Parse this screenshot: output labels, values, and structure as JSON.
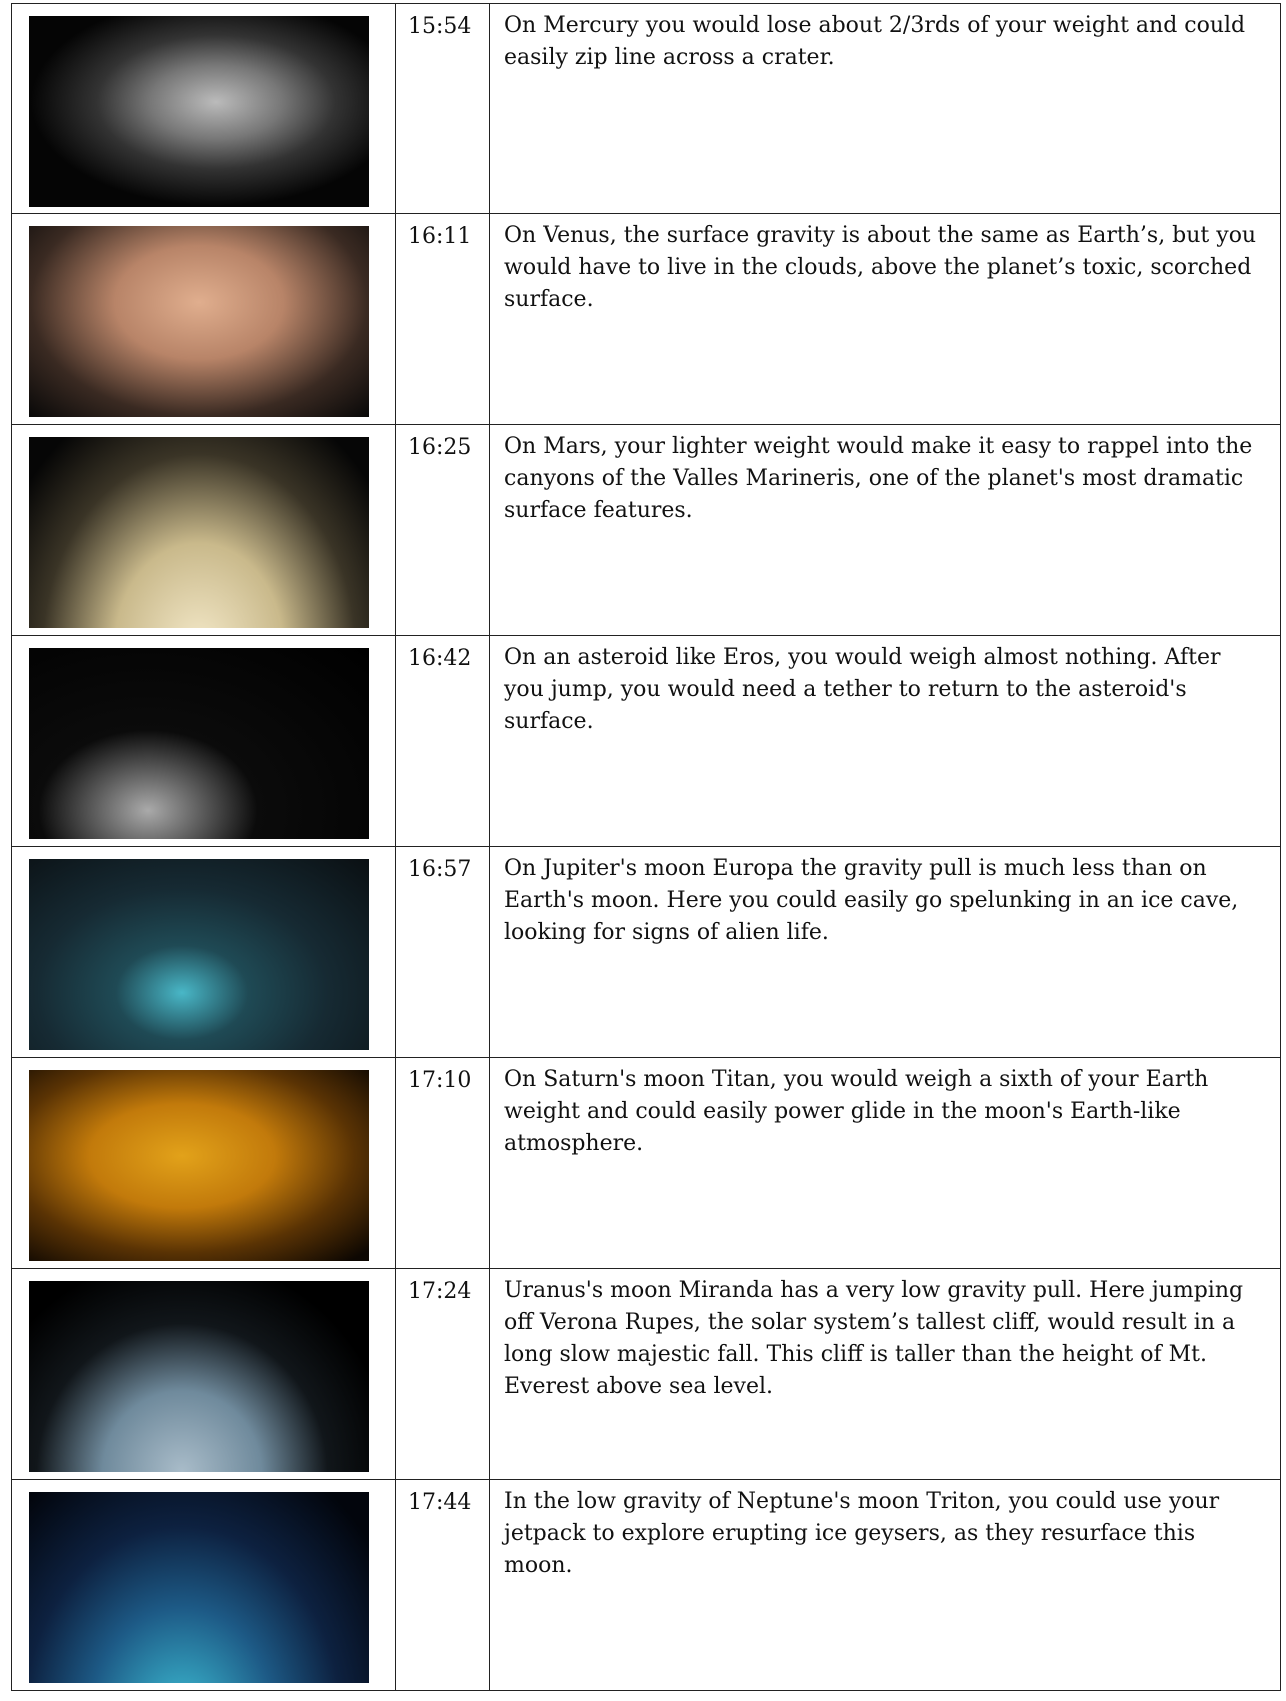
{
  "table": {
    "rows": [
      [
        "15:54",
        "On Mercury you would lose about 2/3rds of your weight and could easily zip line across a crater."
      ],
      [
        "16:11",
        "On Venus, the surface gravity is about the same as Earth’s, but you would have to live in the clouds, above the planet’s toxic, scorched surface."
      ],
      [
        "16:25",
        "On Mars, your lighter weight would make it easy to rappel into the canyons of the Valles Marineris, one of the planet's most dramatic surface features."
      ],
      [
        "16:42",
        "On an asteroid like Eros, you would weigh almost nothing. After you jump, you would need a tether to return to the asteroid's surface."
      ],
      [
        "16:57",
        "On Jupiter's moon Europa the gravity pull is much less than on Earth's moon. Here you could easily go spelunking in an ice cave, looking for signs of alien life."
      ],
      [
        "17:10",
        "On Saturn's moon Titan, you would weigh a sixth of your Earth weight and could easily power glide in the moon's Earth-like atmosphere."
      ],
      [
        "17:24",
        "Uranus's moon Miranda has a very low gravity pull. Here jumping off Verona Rupes, the solar system’s tallest cliff, would result in a long slow majestic fall. This cliff is taller than the height of Mt. Everest above sea level."
      ],
      [
        "17:44",
        "In the low gravity of Neptune's moon Triton, you could use your jetpack to explore erupting ice geysers, as they resurface this moon."
      ]
    ]
  }
}
